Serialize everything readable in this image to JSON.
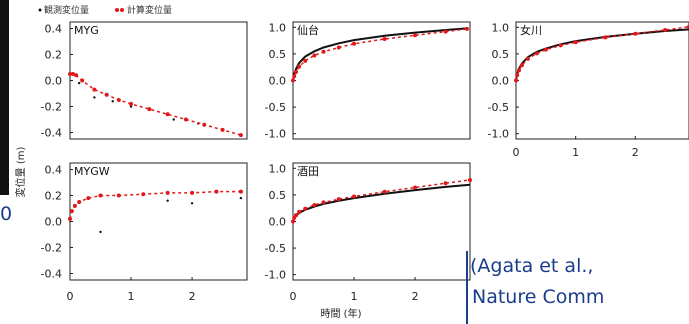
{
  "legend": {
    "observed_label": "観測変位量",
    "computed_label": "計算変位量"
  },
  "axis": {
    "ylabel": "変位量 (m)",
    "xlabel": "時間 (年)"
  },
  "citation": {
    "line1": "(Agata et al.,",
    "line2": "Nature Comm"
  },
  "fragment_number": "0",
  "colors": {
    "observed": "#111111",
    "computed": "#e0181b",
    "frame": "#222222",
    "citation": "#1a3d8c",
    "accent_bar": "#1a3d8c"
  },
  "chart_data": [
    {
      "type": "scatter",
      "title": "MYG",
      "xlim": [
        0,
        2.9
      ],
      "ylim": [
        -0.45,
        0.45
      ],
      "xticks": [],
      "yticks": [
        "0.4",
        "0.2",
        "0.0",
        "-0.2",
        "-0.4"
      ],
      "series": [
        {
          "name": "観測変位量",
          "style": "markers",
          "color": "#111111",
          "x": [
            0.15,
            0.4,
            0.7,
            1.0,
            1.3,
            1.7,
            2.1,
            2.5
          ],
          "y": [
            -0.02,
            -0.13,
            -0.16,
            -0.2,
            -0.22,
            -0.3,
            -0.33,
            -0.38
          ]
        },
        {
          "name": "計算変位量",
          "style": "dotted",
          "color": "#e0181b",
          "x": [
            0,
            0.05,
            0.1,
            0.2,
            0.4,
            0.6,
            0.8,
            1.0,
            1.3,
            1.6,
            1.9,
            2.2,
            2.5,
            2.8
          ],
          "y": [
            0.05,
            0.05,
            0.04,
            0.0,
            -0.07,
            -0.11,
            -0.15,
            -0.18,
            -0.22,
            -0.26,
            -0.3,
            -0.34,
            -0.38,
            -0.42
          ]
        }
      ]
    },
    {
      "type": "line",
      "title": "仙台",
      "xlim": [
        0,
        2.9
      ],
      "ylim": [
        -1.1,
        1.1
      ],
      "xticks": [],
      "yticks": [
        "1.0",
        "0.5",
        "0.0",
        "-0.5",
        "-1.0"
      ],
      "series": [
        {
          "name": "観測変位量",
          "style": "solid",
          "color": "#111111",
          "x": [
            0,
            0.02,
            0.05,
            0.1,
            0.2,
            0.35,
            0.5,
            0.75,
            1.0,
            1.5,
            2.0,
            2.5,
            2.85
          ],
          "y": [
            0.0,
            0.12,
            0.22,
            0.33,
            0.45,
            0.55,
            0.62,
            0.7,
            0.76,
            0.84,
            0.9,
            0.95,
            0.98
          ]
        },
        {
          "name": "計算変位量",
          "style": "dotted",
          "color": "#e0181b",
          "x": [
            0,
            0.02,
            0.05,
            0.1,
            0.2,
            0.35,
            0.5,
            0.75,
            1.0,
            1.5,
            2.0,
            2.5,
            2.85
          ],
          "y": [
            0.0,
            0.08,
            0.16,
            0.26,
            0.37,
            0.47,
            0.54,
            0.62,
            0.69,
            0.78,
            0.85,
            0.92,
            0.97
          ]
        }
      ]
    },
    {
      "type": "line",
      "title": "女川",
      "xlim": [
        0,
        2.9
      ],
      "ylim": [
        -1.1,
        1.1
      ],
      "xticks": [
        "0",
        "1",
        "2"
      ],
      "yticks": [
        "1.0",
        "0.5",
        "0.0",
        "-0.5",
        "-1.0"
      ],
      "series": [
        {
          "name": "観測変位量",
          "style": "solid",
          "color": "#111111",
          "x": [
            0,
            0.02,
            0.05,
            0.1,
            0.2,
            0.35,
            0.5,
            0.75,
            1.0,
            1.5,
            2.0,
            2.5,
            2.9
          ],
          "y": [
            0.0,
            0.12,
            0.22,
            0.32,
            0.44,
            0.54,
            0.6,
            0.68,
            0.74,
            0.82,
            0.88,
            0.93,
            0.96
          ]
        },
        {
          "name": "計算変位量",
          "style": "dotted",
          "color": "#e0181b",
          "x": [
            0,
            0.02,
            0.05,
            0.1,
            0.2,
            0.35,
            0.5,
            0.75,
            1.0,
            1.5,
            2.0,
            2.5,
            2.9
          ],
          "y": [
            0.0,
            0.1,
            0.19,
            0.29,
            0.41,
            0.51,
            0.58,
            0.66,
            0.72,
            0.81,
            0.88,
            0.95,
            1.01
          ]
        }
      ]
    },
    {
      "type": "scatter",
      "title": "MYGW",
      "xlim": [
        0,
        2.9
      ],
      "ylim": [
        -0.45,
        0.45
      ],
      "xticks": [
        "0",
        "1",
        "2"
      ],
      "yticks": [
        "0.4",
        "0.2",
        "0.0",
        "-0.2",
        "-0.4"
      ],
      "series": [
        {
          "name": "観測変位量",
          "style": "markers",
          "color": "#111111",
          "x": [
            0.5,
            1.6,
            2.0,
            2.8
          ],
          "y": [
            -0.08,
            0.16,
            0.14,
            0.18
          ]
        },
        {
          "name": "計算変位量",
          "style": "dotted",
          "color": "#e0181b",
          "x": [
            0,
            0.03,
            0.08,
            0.15,
            0.3,
            0.5,
            0.8,
            1.2,
            1.6,
            2.0,
            2.4,
            2.8
          ],
          "y": [
            0.02,
            0.08,
            0.12,
            0.15,
            0.18,
            0.2,
            0.2,
            0.21,
            0.22,
            0.22,
            0.23,
            0.23
          ]
        }
      ]
    },
    {
      "type": "line",
      "title": "酒田",
      "xlim": [
        0,
        2.9
      ],
      "ylim": [
        -1.1,
        1.1
      ],
      "xticks": [
        "0",
        "1",
        "2"
      ],
      "yticks": [
        "1.0",
        "0.5",
        "0.0",
        "-0.5",
        "-1.0"
      ],
      "series": [
        {
          "name": "観測変位量",
          "style": "solid",
          "color": "#111111",
          "x": [
            0,
            0.02,
            0.05,
            0.1,
            0.2,
            0.35,
            0.5,
            0.75,
            1.0,
            1.5,
            2.0,
            2.5,
            2.9
          ],
          "y": [
            0.0,
            0.06,
            0.11,
            0.16,
            0.22,
            0.28,
            0.33,
            0.39,
            0.44,
            0.52,
            0.59,
            0.65,
            0.69
          ]
        },
        {
          "name": "計算変位量",
          "style": "dotted",
          "color": "#e0181b",
          "x": [
            0,
            0.02,
            0.05,
            0.1,
            0.2,
            0.35,
            0.5,
            0.75,
            1.0,
            1.5,
            2.0,
            2.5,
            2.9
          ],
          "y": [
            0.0,
            0.07,
            0.12,
            0.18,
            0.24,
            0.31,
            0.36,
            0.42,
            0.47,
            0.56,
            0.64,
            0.72,
            0.78
          ]
        }
      ]
    }
  ]
}
